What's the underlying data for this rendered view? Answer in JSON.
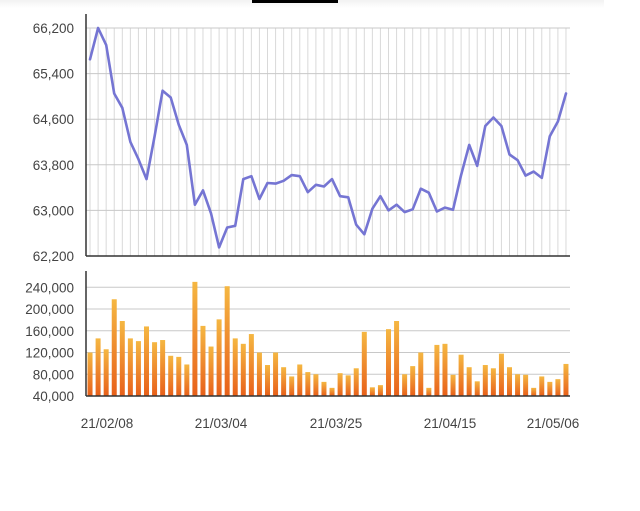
{
  "chart_data": [
    {
      "type": "line",
      "title": "",
      "xlabel": "",
      "ylabel": "",
      "ylim": [
        62200,
        66200
      ],
      "y_ticks": [
        "66,200",
        "65,400",
        "64,600",
        "63,800",
        "63,000",
        "62,200"
      ],
      "grid": true,
      "series_color": "#7575d3",
      "values": [
        65650,
        66200,
        65900,
        65050,
        64800,
        64200,
        63900,
        63550,
        64300,
        65100,
        64980,
        64500,
        64150,
        63100,
        63350,
        62950,
        62350,
        62700,
        62730,
        63550,
        63600,
        63200,
        63480,
        63470,
        63520,
        63620,
        63600,
        63320,
        63450,
        63420,
        63550,
        63250,
        63230,
        62750,
        62580,
        63030,
        63250,
        63000,
        63100,
        62970,
        63020,
        63380,
        63310,
        62980,
        63050,
        63010,
        63620,
        64150,
        63780,
        64480,
        64630,
        64480,
        63980,
        63880,
        63610,
        63680,
        63570,
        64300,
        64560,
        65050
      ]
    },
    {
      "type": "bar",
      "title": "",
      "xlabel": "",
      "ylabel": "",
      "ylim": [
        40000,
        270000
      ],
      "y_ticks": [
        "240,000",
        "200,000",
        "160,000",
        "120,000",
        "80,000",
        "40,000"
      ],
      "x_tick_labels": [
        "21/02/08",
        "21/03/04",
        "21/03/25",
        "21/04/15",
        "21/05/06"
      ],
      "grid": true,
      "bar_color_top": "#f5b742",
      "bar_color_bottom": "#e8601a",
      "values": [
        120000,
        146000,
        126000,
        218000,
        178000,
        146000,
        141000,
        168000,
        139000,
        143000,
        114000,
        112000,
        98000,
        250000,
        169000,
        131000,
        181000,
        242000,
        146000,
        136000,
        154000,
        120000,
        97000,
        120000,
        93000,
        76000,
        98000,
        84000,
        80000,
        66000,
        55000,
        82000,
        78000,
        91000,
        158000,
        56000,
        60000,
        163000,
        178000,
        80000,
        95000,
        120000,
        55000,
        134000,
        136000,
        79000,
        116000,
        93000,
        67000,
        97000,
        91000,
        118000,
        93000,
        80000,
        79000,
        55000,
        76000,
        66000,
        71000,
        99000
      ]
    }
  ]
}
